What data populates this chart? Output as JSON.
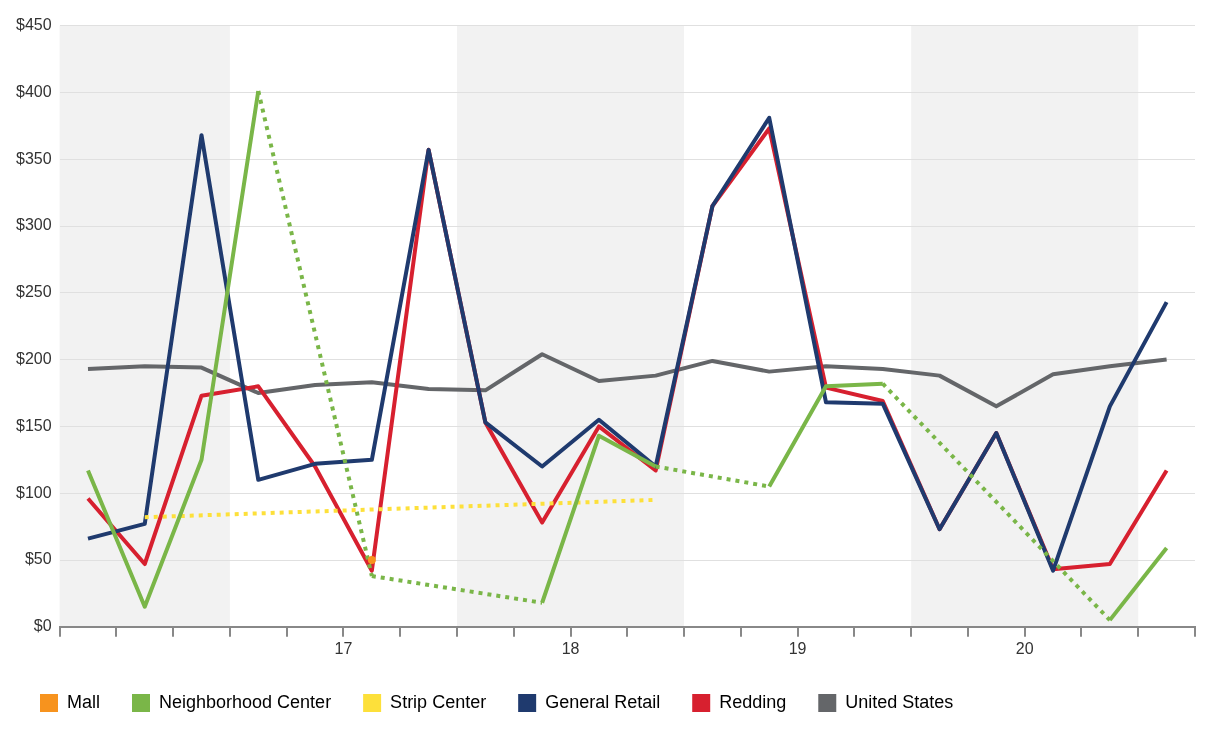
{
  "chart_data": {
    "type": "line",
    "x": [
      16.375,
      16.625,
      16.875,
      17.125,
      17.375,
      17.625,
      17.875,
      18.125,
      18.375,
      18.625,
      18.875,
      19.125,
      19.375,
      19.625,
      19.875,
      20.125,
      20.375,
      20.625,
      20.875,
      21.125
    ],
    "series": [
      {
        "name": "Mall",
        "color": "#f7931e",
        "marker": "circle",
        "values": [
          null,
          null,
          null,
          null,
          null,
          50,
          null,
          null,
          null,
          null,
          null,
          null,
          null,
          null,
          null,
          null,
          null,
          null,
          null,
          null
        ]
      },
      {
        "name": "Neighborhood Center",
        "color": "#7ab648",
        "values": [
          117,
          15,
          125,
          401,
          null,
          38,
          null,
          null,
          18,
          143,
          120,
          null,
          105,
          180,
          182,
          null,
          null,
          null,
          5,
          59
        ]
      },
      {
        "name": "Strip Center",
        "color": "#fde03a",
        "line_style": "dotted",
        "values": [
          null,
          82,
          null,
          null,
          null,
          null,
          null,
          null,
          null,
          null,
          95,
          null,
          null,
          null,
          null,
          null,
          null,
          null,
          null,
          null
        ]
      },
      {
        "name": "General Retail",
        "color": "#1f3a6e",
        "values": [
          66,
          77,
          368,
          110,
          122,
          125,
          357,
          153,
          120,
          155,
          120,
          315,
          381,
          168,
          167,
          73,
          145,
          42,
          165,
          243
        ]
      },
      {
        "name": "Redding",
        "color": "#d7202f",
        "values": [
          96,
          47,
          173,
          180,
          120,
          42,
          357,
          153,
          78,
          150,
          117,
          315,
          373,
          179,
          169,
          73,
          145,
          43,
          47,
          117
        ]
      },
      {
        "name": "United States",
        "color": "#646669",
        "values": [
          193,
          195,
          194,
          175,
          181,
          183,
          178,
          177,
          204,
          184,
          188,
          199,
          191,
          195,
          193,
          188,
          165,
          189,
          195,
          200
        ]
      }
    ],
    "xlim": [
      16.25,
      21.25
    ],
    "xticks": [
      {
        "value": 16.25,
        "label": null
      },
      {
        "value": 16.5,
        "label": null
      },
      {
        "value": 16.75,
        "label": null
      },
      {
        "value": 17,
        "label": null
      },
      {
        "value": 17.25,
        "label": null
      },
      {
        "value": 17.5,
        "label": "17"
      },
      {
        "value": 17.75,
        "label": null
      },
      {
        "value": 18,
        "label": null
      },
      {
        "value": 18.25,
        "label": null
      },
      {
        "value": 18.5,
        "label": "18"
      },
      {
        "value": 18.75,
        "label": null
      },
      {
        "value": 19,
        "label": null
      },
      {
        "value": 19.25,
        "label": null
      },
      {
        "value": 19.5,
        "label": "19"
      },
      {
        "value": 19.75,
        "label": null
      },
      {
        "value": 20,
        "label": null
      },
      {
        "value": 20.25,
        "label": null
      },
      {
        "value": 20.5,
        "label": "20"
      },
      {
        "value": 20.75,
        "label": null
      },
      {
        "value": 21,
        "label": null
      },
      {
        "value": 21.25,
        "label": null
      }
    ],
    "ylim": [
      0,
      450
    ],
    "yticks": [
      {
        "value": 0,
        "label": "$0"
      },
      {
        "value": 50,
        "label": "$50"
      },
      {
        "value": 100,
        "label": "$100"
      },
      {
        "value": 150,
        "label": "$150"
      },
      {
        "value": 200,
        "label": "$200"
      },
      {
        "value": 250,
        "label": "$250"
      },
      {
        "value": 300,
        "label": "$300"
      },
      {
        "value": 350,
        "label": "$350"
      },
      {
        "value": 400,
        "label": "$400"
      },
      {
        "value": 450,
        "label": "$450"
      }
    ],
    "bands": [
      {
        "axis": "x",
        "from": 16.25,
        "to": 17,
        "color": "#f2f2f2"
      },
      {
        "axis": "x",
        "from": 18,
        "to": 19,
        "color": "#f2f2f2"
      },
      {
        "axis": "x",
        "from": 20,
        "to": 21,
        "color": "#f2f2f2"
      }
    ],
    "grid": "y",
    "legend": "bottom",
    "marker": "none",
    "line_style": "solid"
  }
}
